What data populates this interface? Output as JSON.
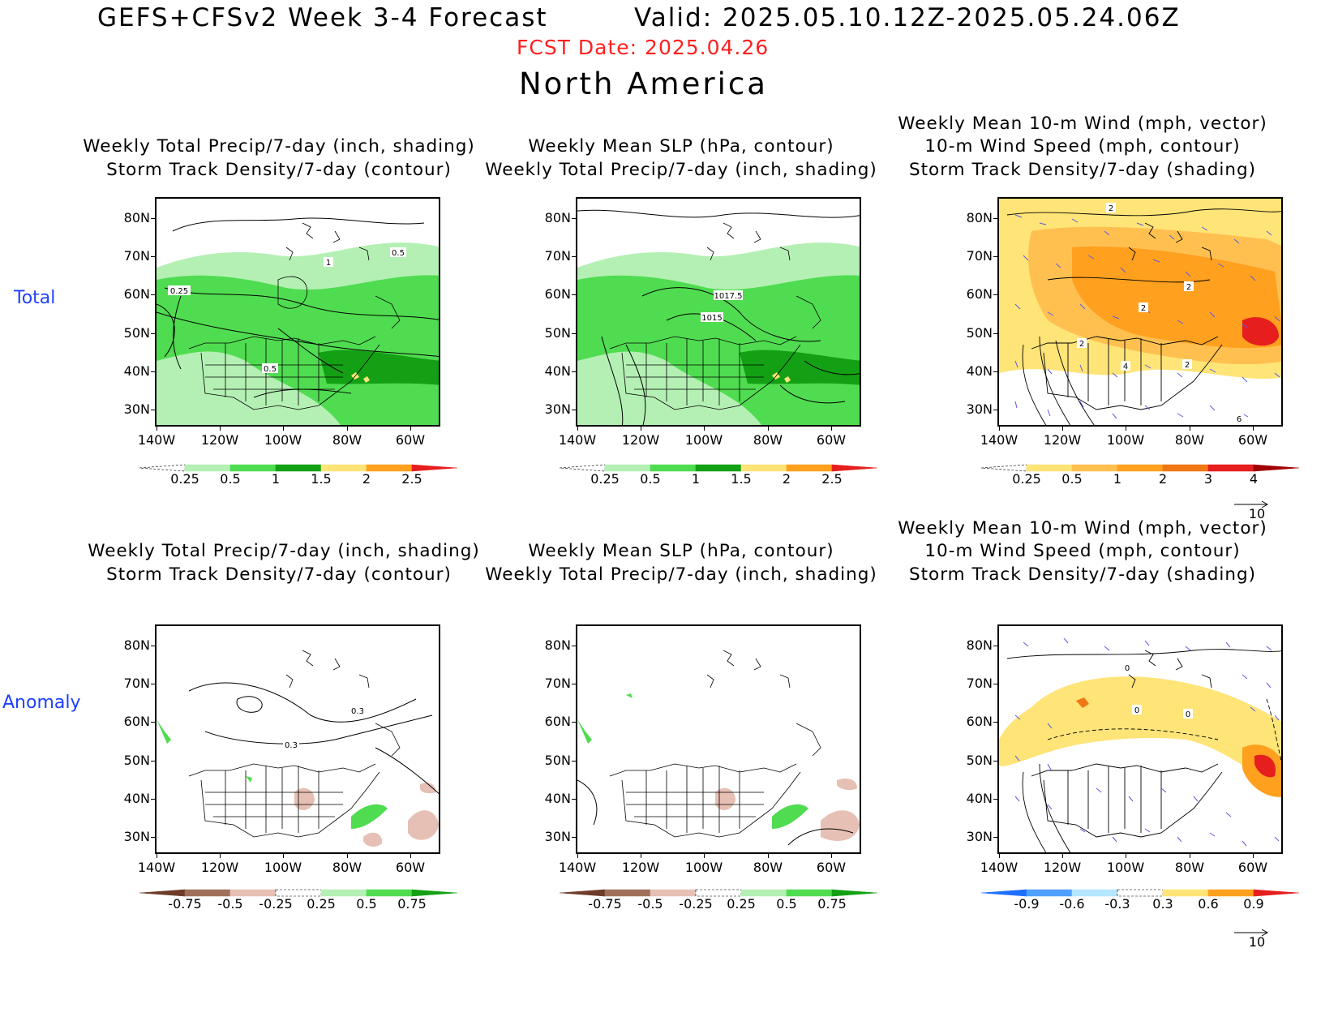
{
  "header": {
    "title": "GEFS+CFSv2 Week 3-4 Forecast",
    "valid": "Valid: 2025.05.10.12Z-2025.05.24.06Z",
    "fcst_date": "FCST Date: 2025.04.26",
    "region": "North America"
  },
  "rows": {
    "total": "Total",
    "anomaly": "Anomaly"
  },
  "titles": {
    "p1_l1": "Weekly Total Precip/7-day (inch, shading)",
    "p1_l2": "Storm Track Density/7-day (contour)",
    "p2_l1": "Weekly Mean SLP (hPa, contour)",
    "p2_l2": "Weekly Total Precip/7-day (inch, shading)",
    "p3_l1": "Weekly Mean 10-m Wind (mph, vector)",
    "p3_l2": "10-m Wind Speed (mph, contour)",
    "p3_l3": "Storm Track Density/7-day (shading)"
  },
  "axes": {
    "lat": [
      "80N",
      "70N",
      "60N",
      "50N",
      "40N",
      "30N"
    ],
    "lon": [
      "140W",
      "120W",
      "100W",
      "80W",
      "60W"
    ]
  },
  "colorbars": {
    "precip": {
      "labels": [
        "0.25",
        "0.5",
        "1",
        "1.5",
        "2",
        "2.5"
      ],
      "colors": [
        "#ffffff",
        "#b4f0b4",
        "#50dc50",
        "#14a014",
        "#ffe478",
        "#ffa01e",
        "#e61e1e"
      ]
    },
    "storm": {
      "labels": [
        "0.25",
        "0.5",
        "1",
        "2",
        "3",
        "4"
      ],
      "colors": [
        "#ffffff",
        "#ffe478",
        "#ffc050",
        "#ffa01e",
        "#f07814",
        "#e61e1e",
        "#a00000"
      ]
    },
    "precip_anom": {
      "labels": [
        "-0.75",
        "-0.5",
        "-0.25",
        "0.25",
        "0.5",
        "0.75"
      ],
      "colors": [
        "#6e3c28",
        "#a0705a",
        "#e6c0b4",
        "#ffffff",
        "#b4f0b4",
        "#50dc50",
        "#14a014"
      ]
    },
    "storm_anom": {
      "labels": [
        "-0.9",
        "-0.6",
        "-0.3",
        "0.3",
        "0.6",
        "0.9"
      ],
      "colors": [
        "#1e6eff",
        "#50a0ff",
        "#b4e6ff",
        "#ffffff",
        "#ffe478",
        "#ffa01e",
        "#e61e1e"
      ]
    }
  },
  "wind_reference": "10",
  "contour_labels": {
    "p1": [
      "1",
      "0.5",
      "0.25",
      "0.5"
    ],
    "p2": [
      "1017.5",
      "1015"
    ],
    "p3": [
      "2",
      "2",
      "2",
      "2",
      "4",
      "2",
      "6"
    ],
    "p4": [
      "0.3",
      "0.3"
    ],
    "p6": [
      "0",
      "0",
      "0"
    ]
  }
}
